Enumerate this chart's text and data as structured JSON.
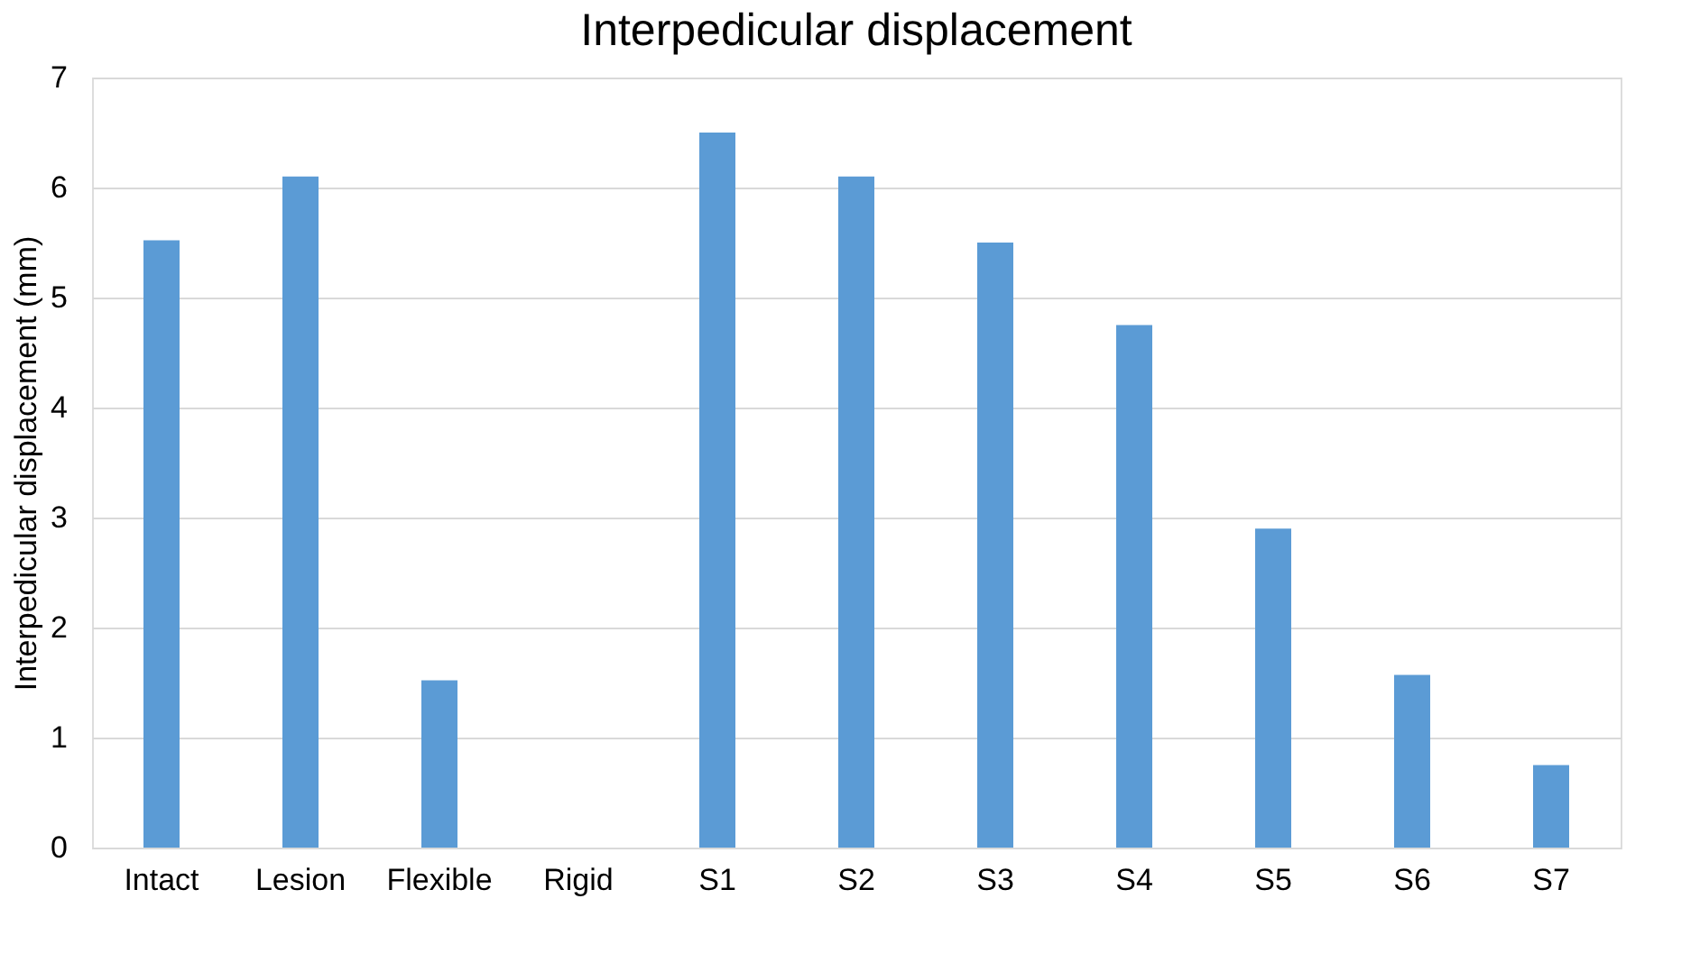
{
  "chart_data": {
    "type": "bar",
    "title": "Interpedicular displacement",
    "ylabel": "Interpedicular displacement (mm)",
    "categories": [
      "Intact",
      "Lesion",
      "Flexible",
      "Rigid",
      "S1",
      "S2",
      "S3",
      "S4",
      "S5",
      "S6",
      "S7"
    ],
    "values": [
      5.52,
      6.1,
      1.52,
      0,
      6.5,
      6.1,
      5.5,
      4.75,
      2.9,
      1.57,
      0.75
    ],
    "color": "#5b9bd5",
    "ylim": [
      0,
      7
    ],
    "yticks": [
      0,
      1,
      2,
      3,
      4,
      5,
      6,
      7
    ],
    "grid": "y"
  }
}
